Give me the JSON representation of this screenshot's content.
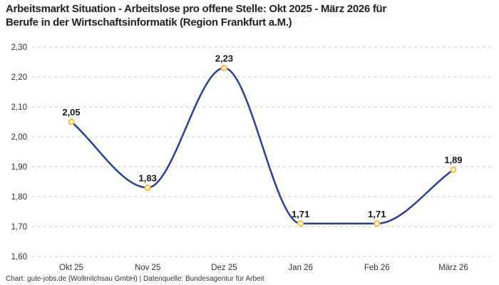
{
  "header": {
    "title": "Arbeitsmarkt Situation - Arbeitslose pro offene Stelle: Okt 2025 - März 2026 für\nBerufe in der Wirtschaftsinformatik (Region Frankfurt a.M.)"
  },
  "footer": {
    "text": "Chart: gute-jobs.de (Wollmilchsau GmbH) | Datenquelle: Bundesagentur für Arbeit"
  },
  "chart_data": {
    "type": "line",
    "title": "Arbeitsmarkt Situation - Arbeitslose pro offene Stelle: Okt 2025 - März 2026 für Berufe in der Wirtschaftsinformatik (Region Frankfurt a.M.)",
    "categories": [
      "Okt 25",
      "Nov 25",
      "Dez 25",
      "Jan 26",
      "Feb 26",
      "März 26"
    ],
    "values": [
      2.05,
      1.83,
      2.23,
      1.71,
      1.71,
      1.89
    ],
    "value_labels": [
      "2,05",
      "1,83",
      "2,23",
      "1,71",
      "1,71",
      "1,89"
    ],
    "y_ticks": [
      2.3,
      2.2,
      2.1,
      2.0,
      1.9,
      1.8,
      1.7,
      1.6
    ],
    "y_tick_labels": [
      "2,30",
      "2,20",
      "2,10",
      "2,00",
      "1,90",
      "1,80",
      "1,70",
      "1,60"
    ],
    "ylim": [
      1.6,
      2.3
    ],
    "xlabel": "",
    "ylabel": "",
    "legend": "none",
    "grid": "horizontal-dashed",
    "curve": "monotone",
    "colors": {
      "line": "#2b3f9e",
      "marker": "#fcc23a",
      "marker_fill": "#ffffff",
      "grid": "#c9c9c9",
      "tick_text": "#333333",
      "label_text": "#1a1a1a",
      "title_text": "#222222",
      "background": "#ffffff"
    }
  }
}
